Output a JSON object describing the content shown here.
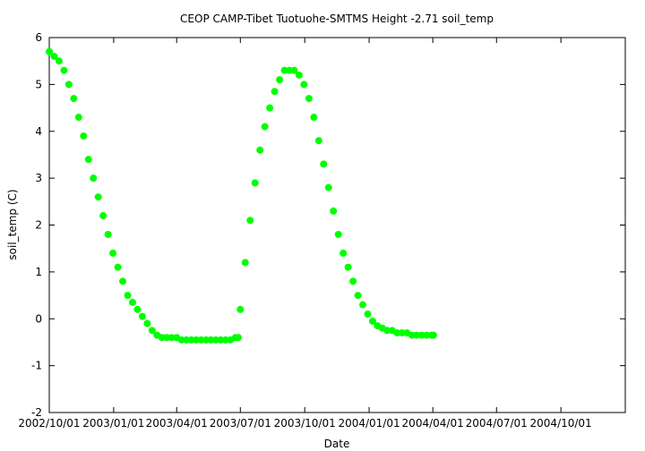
{
  "chart_data": {
    "type": "scatter",
    "title": "CEOP CAMP-Tibet Tuotuohe-SMTMS Height -2.71 soil_temp",
    "xlabel": "Date",
    "ylabel": "soil_temp (C)",
    "x_ticks": [
      "2002/10/01",
      "2003/01/01",
      "2003/04/01",
      "2003/07/01",
      "2003/10/01",
      "2004/01/01",
      "2004/04/01",
      "2004/07/01",
      "2004/10/01"
    ],
    "xlim": [
      "2002/10/01",
      "2005/01/01"
    ],
    "ylim": [
      -2,
      6
    ],
    "y_ticks": [
      -2,
      -1,
      0,
      1,
      2,
      3,
      4,
      5,
      6
    ],
    "grid": false,
    "marker_color": "#00ff00",
    "series": [
      {
        "x": [
          "2002/10/01",
          "2002/10/08",
          "2002/10/15",
          "2002/10/22",
          "2002/10/29",
          "2002/11/05",
          "2002/11/12",
          "2002/11/19",
          "2002/11/26",
          "2002/12/03",
          "2002/12/10",
          "2002/12/17",
          "2002/12/24",
          "2002/12/31",
          "2003/01/07",
          "2003/01/14",
          "2003/01/21",
          "2003/01/28",
          "2003/02/04",
          "2003/02/11",
          "2003/02/18",
          "2003/02/25",
          "2003/03/04",
          "2003/03/11",
          "2003/03/18",
          "2003/03/25",
          "2003/04/01",
          "2003/04/08",
          "2003/04/15",
          "2003/04/22",
          "2003/04/29",
          "2003/05/06",
          "2003/05/13",
          "2003/05/20",
          "2003/05/27",
          "2003/06/03",
          "2003/06/10",
          "2003/06/17",
          "2003/06/24",
          "2003/06/28",
          "2003/07/01",
          "2003/07/08",
          "2003/07/15",
          "2003/07/22",
          "2003/07/29",
          "2003/08/05",
          "2003/08/12",
          "2003/08/19",
          "2003/08/26",
          "2003/09/02",
          "2003/09/09",
          "2003/09/16",
          "2003/09/23",
          "2003/09/30",
          "2003/10/07",
          "2003/10/14",
          "2003/10/21",
          "2003/10/28",
          "2003/11/04",
          "2003/11/11",
          "2003/11/18",
          "2003/11/25",
          "2003/12/02",
          "2003/12/09",
          "2003/12/16",
          "2003/12/23",
          "2003/12/30",
          "2004/01/06",
          "2004/01/13",
          "2004/01/20",
          "2004/01/27",
          "2004/02/03",
          "2004/02/10",
          "2004/02/17",
          "2004/02/24",
          "2004/03/02",
          "2004/03/09",
          "2004/03/16",
          "2004/03/23",
          "2004/03/30",
          "2004/04/02"
        ],
        "y": [
          5.7,
          5.6,
          5.5,
          5.3,
          5.0,
          4.7,
          4.3,
          3.9,
          3.4,
          3.0,
          2.6,
          2.2,
          1.8,
          1.4,
          1.1,
          0.8,
          0.5,
          0.35,
          0.2,
          0.05,
          -0.1,
          -0.25,
          -0.35,
          -0.4,
          -0.4,
          -0.4,
          -0.4,
          -0.45,
          -0.45,
          -0.45,
          -0.45,
          -0.45,
          -0.45,
          -0.45,
          -0.45,
          -0.45,
          -0.45,
          -0.45,
          -0.4,
          -0.4,
          0.2,
          1.2,
          2.1,
          2.9,
          3.6,
          4.1,
          4.5,
          4.85,
          5.1,
          5.3,
          5.3,
          5.3,
          5.2,
          5.0,
          4.7,
          4.3,
          3.8,
          3.3,
          2.8,
          2.3,
          1.8,
          1.4,
          1.1,
          0.8,
          0.5,
          0.3,
          0.1,
          -0.05,
          -0.15,
          -0.2,
          -0.25,
          -0.25,
          -0.3,
          -0.3,
          -0.3,
          -0.35,
          -0.35,
          -0.35,
          -0.35,
          -0.35,
          -0.35
        ]
      }
    ]
  }
}
